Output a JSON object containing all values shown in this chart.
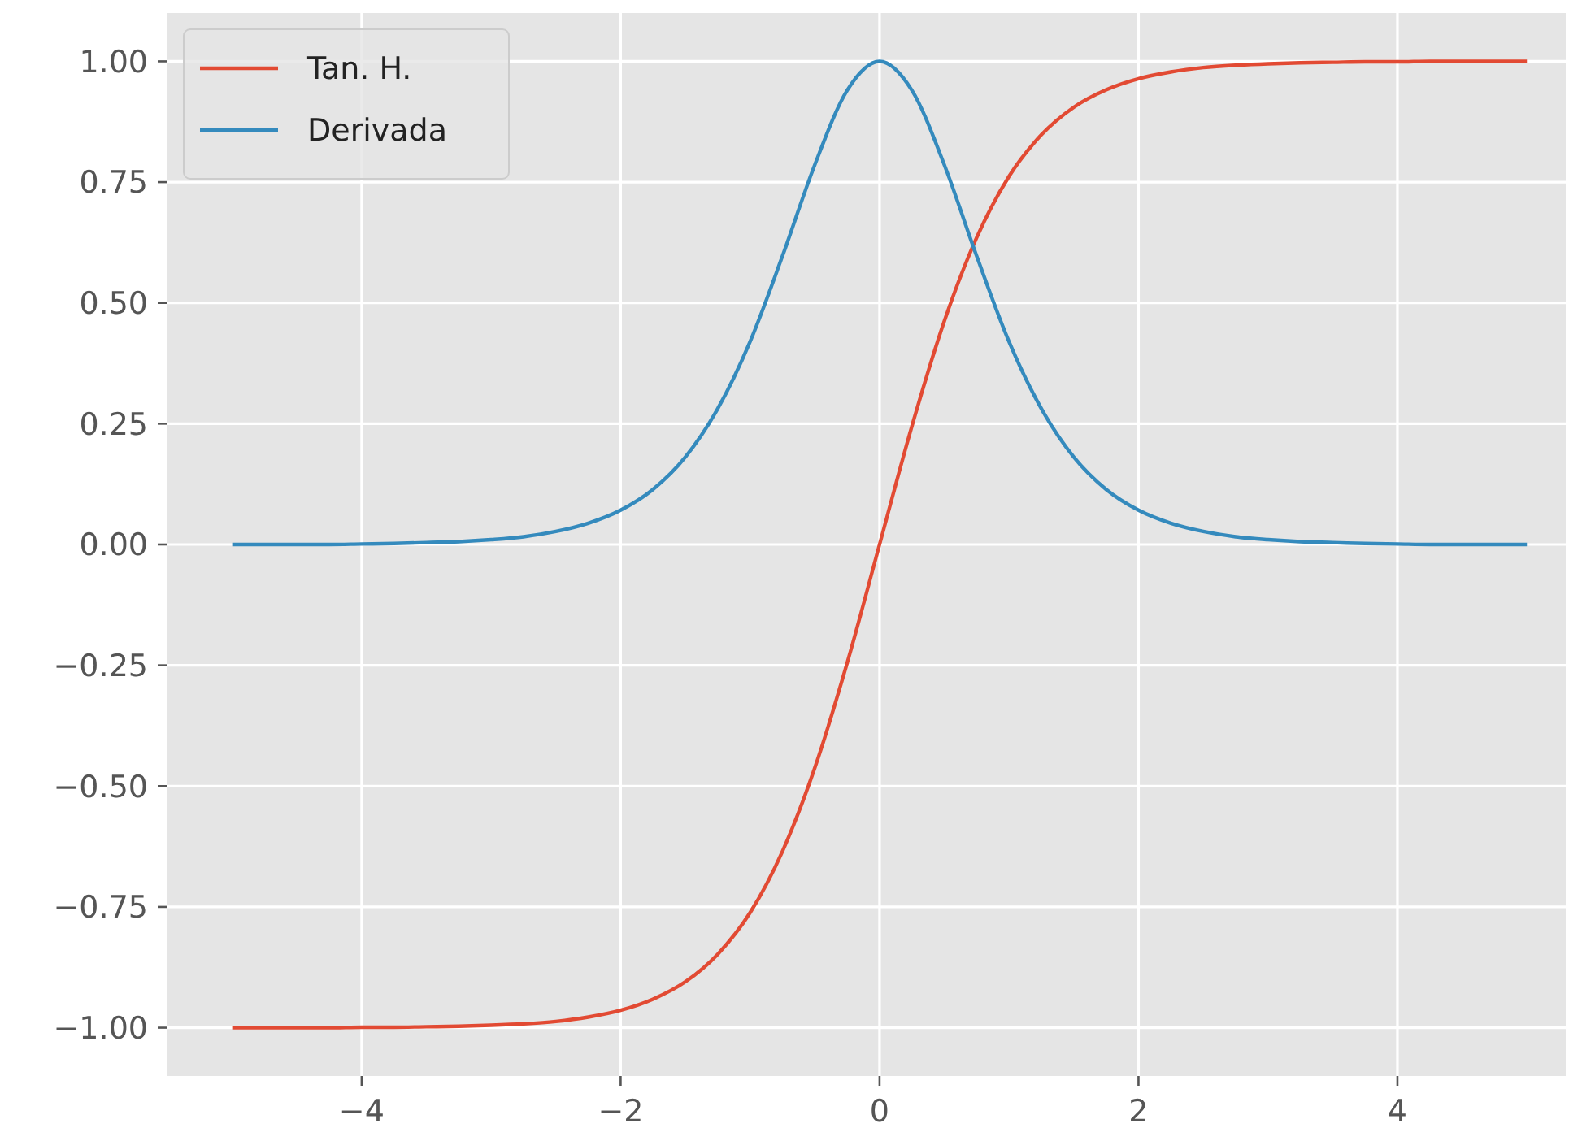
{
  "chart_data": {
    "type": "line",
    "x": [
      -5,
      -4.75,
      -4.5,
      -4.25,
      -4,
      -3.75,
      -3.5,
      -3.25,
      -3,
      -2.75,
      -2.5,
      -2.25,
      -2,
      -1.75,
      -1.5,
      -1.25,
      -1,
      -0.75,
      -0.5,
      -0.25,
      0,
      0.25,
      0.5,
      0.75,
      1,
      1.25,
      1.5,
      1.75,
      2,
      2.25,
      2.5,
      2.75,
      3,
      3.25,
      3.5,
      3.75,
      4,
      4.25,
      4.5,
      4.75,
      5
    ],
    "series": [
      {
        "name": "Tan. H.",
        "color": "#e24a33",
        "values": [
          -1,
          -1,
          -1,
          -1,
          -0.999,
          -0.999,
          -0.998,
          -0.997,
          -0.995,
          -0.992,
          -0.987,
          -0.978,
          -0.964,
          -0.941,
          -0.905,
          -0.848,
          -0.762,
          -0.635,
          -0.462,
          -0.245,
          0,
          0.245,
          0.462,
          0.635,
          0.762,
          0.848,
          0.905,
          0.941,
          0.964,
          0.978,
          0.987,
          0.992,
          0.995,
          0.997,
          0.998,
          0.999,
          0.999,
          1,
          1,
          1,
          1
        ]
      },
      {
        "name": "Derivada",
        "color": "#348abd",
        "values": [
          0,
          0,
          0,
          0,
          0.001,
          0.002,
          0.004,
          0.006,
          0.01,
          0.016,
          0.027,
          0.044,
          0.071,
          0.114,
          0.181,
          0.281,
          0.42,
          0.597,
          0.786,
          0.94,
          1,
          0.94,
          0.786,
          0.597,
          0.42,
          0.281,
          0.181,
          0.114,
          0.071,
          0.044,
          0.027,
          0.016,
          0.01,
          0.006,
          0.004,
          0.002,
          0.001,
          0,
          0,
          0,
          0
        ]
      }
    ],
    "xlim": [
      -5.5,
      5.3
    ],
    "ylim": [
      -1.1,
      1.1
    ],
    "xticks": [
      {
        "value": -4,
        "label": "−4"
      },
      {
        "value": -2,
        "label": "−2"
      },
      0,
      2,
      4
    ],
    "yticks": [
      {
        "value": -1,
        "label": "−1.00"
      },
      {
        "value": -0.75,
        "label": "−0.75"
      },
      {
        "value": -0.5,
        "label": "−0.50"
      },
      {
        "value": -0.25,
        "label": "−0.25"
      },
      {
        "value": 0,
        "label": "0.00"
      },
      {
        "value": 0.25,
        "label": "0.25"
      },
      {
        "value": 0.5,
        "label": "0.50"
      },
      {
        "value": 0.75,
        "label": "0.75"
      },
      {
        "value": 1,
        "label": "1.00"
      }
    ],
    "grid": true,
    "legend": "top left",
    "marker": "none",
    "line_style": "solid"
  }
}
